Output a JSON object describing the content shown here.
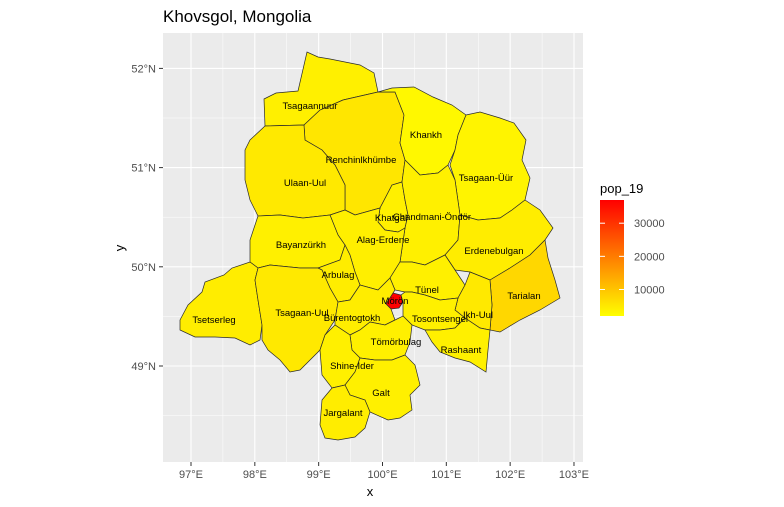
{
  "chart_data": {
    "type": "choropleth-map",
    "title": "Khovsgol, Mongolia",
    "xlabel": "x",
    "ylabel": "y",
    "x_ticks": [
      "97°E",
      "98°E",
      "99°E",
      "100°E",
      "101°E",
      "102°E",
      "103°E"
    ],
    "y_ticks": [
      "49°N",
      "50°N",
      "51°N",
      "52°N"
    ],
    "xlim": [
      96.55,
      103.05
    ],
    "ylim": [
      48.05,
      52.35
    ],
    "grid": true,
    "legend": {
      "title": "pop_19",
      "position": "right",
      "breaks": [
        10000,
        20000,
        30000
      ],
      "break_labels": [
        "10000",
        "20000",
        "30000"
      ],
      "range": [
        2000,
        37000
      ],
      "low_color": "#ffff00",
      "high_color": "#ff0000"
    },
    "regions": [
      {
        "name": "Tsagaannuur",
        "value": 4000
      },
      {
        "name": "Renchinlkhümbe",
        "value": 5500
      },
      {
        "name": "Khankh",
        "value": 3000
      },
      {
        "name": "Tsagaan-Üür",
        "value": 3500
      },
      {
        "name": "Ulaan-Uul",
        "value": 5000
      },
      {
        "name": "Khatgal",
        "value": 4000
      },
      {
        "name": "Chandmani-Öndör",
        "value": 4000
      },
      {
        "name": "Alag-Erdene",
        "value": 4200
      },
      {
        "name": "Bayanzürkh",
        "value": 4000
      },
      {
        "name": "Erdenebulgan",
        "value": 4500
      },
      {
        "name": "Arbulag",
        "value": 4500
      },
      {
        "name": "Tünel",
        "value": 4000
      },
      {
        "name": "Tarialan",
        "value": 7500
      },
      {
        "name": "Mörön",
        "value": 37000
      },
      {
        "name": "Ikh-Uul",
        "value": 5000
      },
      {
        "name": "Tsetserleg",
        "value": 4500
      },
      {
        "name": "Tsagaan-Uul",
        "value": 5000
      },
      {
        "name": "Bürentogtokh",
        "value": 4500
      },
      {
        "name": "Tosontsengel",
        "value": 4000
      },
      {
        "name": "Tömörbulag",
        "value": 4000
      },
      {
        "name": "Rashaant",
        "value": 4000
      },
      {
        "name": "Shine-Ider",
        "value": 4000
      },
      {
        "name": "Galt",
        "value": 4000
      },
      {
        "name": "Jargalant",
        "value": 4500
      }
    ]
  }
}
